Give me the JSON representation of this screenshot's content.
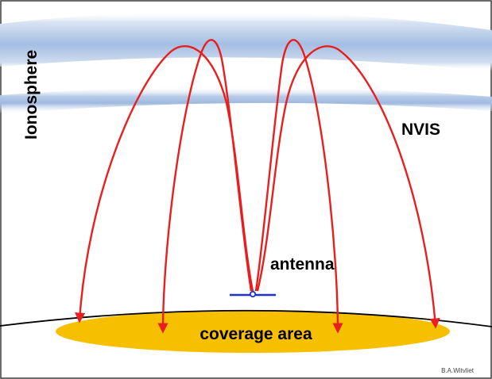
{
  "labels": {
    "ionosphere": "Ionosphere",
    "nvis": "NVIS",
    "antenna": "antenna",
    "coverage": "coverage area",
    "credit": "B.A.Witvliet"
  },
  "colors": {
    "ray": "#e81f1f",
    "coverage_fill": "#f6c000",
    "antenna": "#1f2fd8",
    "ground_line": "#000000",
    "ionosphere_band": "#a9c2e3"
  },
  "diagram": {
    "ray_count": 4,
    "antenna_element": "horizontal dipole with center feed point"
  }
}
